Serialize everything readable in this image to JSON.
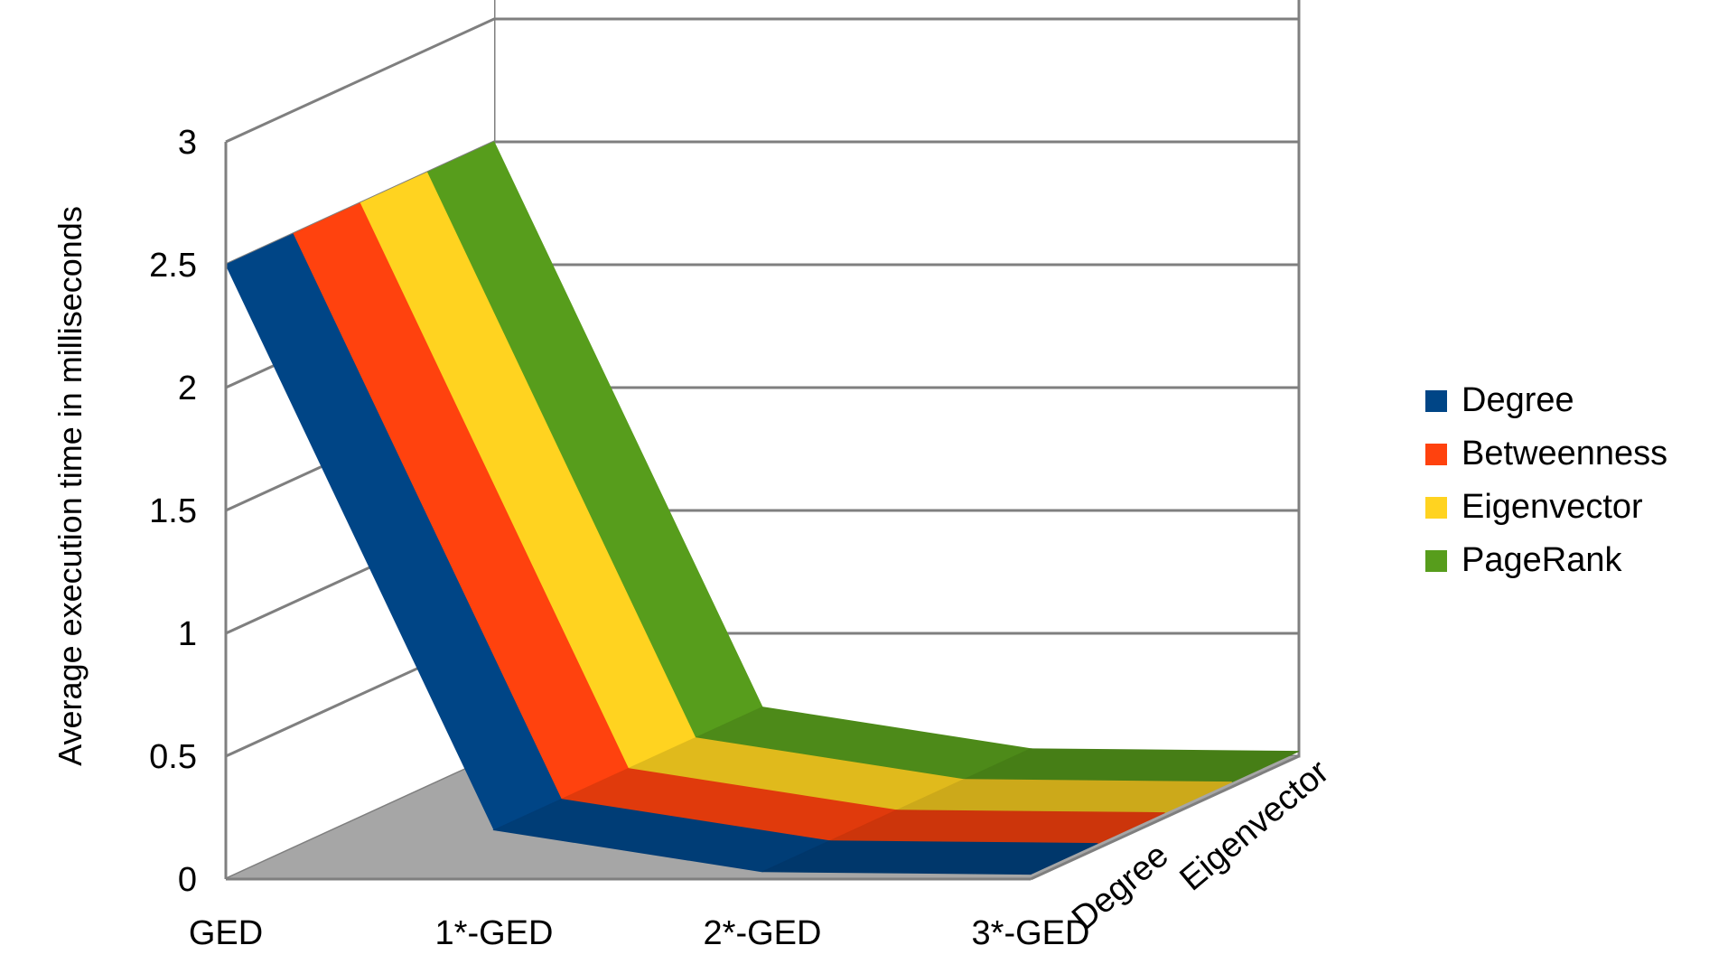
{
  "chart_data": {
    "type": "area",
    "projection": "3d-ribbon",
    "categories": [
      "GED",
      "1*-GED",
      "2*-GED",
      "3*-GED"
    ],
    "series": [
      {
        "name": "Degree",
        "color": "#004586",
        "values": [
          2.5,
          0.2,
          0.03,
          0.02
        ]
      },
      {
        "name": "Betweenness",
        "color": "#ff420e",
        "values": [
          2.5,
          0.2,
          0.03,
          0.02
        ]
      },
      {
        "name": "Eigenvector",
        "color": "#ffd320",
        "values": [
          2.5,
          0.2,
          0.03,
          0.02
        ]
      },
      {
        "name": "PageRank",
        "color": "#579d1c",
        "values": [
          2.5,
          0.2,
          0.03,
          0.02
        ]
      }
    ],
    "depth_labels": [
      "Degree",
      "Eigenvector"
    ],
    "ylabel": "Average execution time in milliseconds",
    "xlabel": "",
    "ylim": [
      0,
      3
    ],
    "y_ticks": [
      "0",
      "0.5",
      "1",
      "1.5",
      "2",
      "2.5",
      "3"
    ],
    "grid": true,
    "legend_position": "right",
    "floor_color": "#a6a6a6",
    "wall_color": "#ffffff",
    "grid_color": "#7f7f7f"
  }
}
